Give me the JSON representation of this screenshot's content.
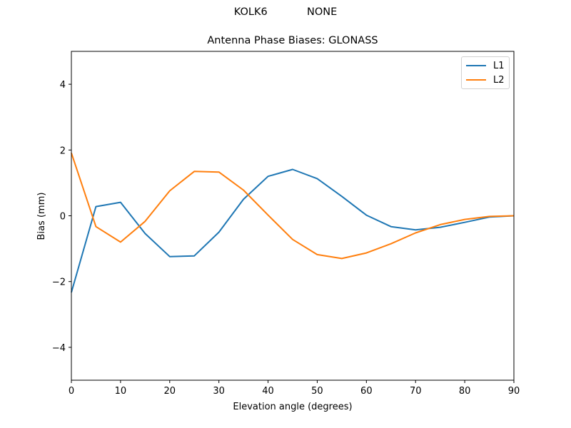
{
  "header": {
    "suptitle": "KOLK6            NONE",
    "title": "Antenna Phase Biases: GLONASS"
  },
  "axes": {
    "xlabel": "Elevation angle (degrees)",
    "ylabel": "Bias (mm)",
    "xticks": [
      "0",
      "10",
      "20",
      "30",
      "40",
      "50",
      "60",
      "70",
      "80",
      "90"
    ],
    "yticks": [
      "4",
      "2",
      "0",
      "−2",
      "−4"
    ]
  },
  "legend": {
    "items": [
      {
        "label": "L1",
        "color": "#1f77b4"
      },
      {
        "label": "L2",
        "color": "#ff7f0e"
      }
    ]
  },
  "chart_data": {
    "type": "line",
    "title": "Antenna Phase Biases: GLONASS",
    "suptitle": "KOLK6            NONE",
    "xlabel": "Elevation angle (degrees)",
    "ylabel": "Bias (mm)",
    "xlim": [
      0,
      90
    ],
    "ylim": [
      -5,
      5
    ],
    "grid": false,
    "legend_position": "upper right",
    "x": [
      0,
      5,
      10,
      15,
      20,
      25,
      30,
      35,
      40,
      45,
      50,
      55,
      60,
      65,
      70,
      75,
      80,
      85,
      90
    ],
    "series": [
      {
        "name": "L1",
        "color": "#1f77b4",
        "values": [
          -2.33,
          0.28,
          0.41,
          -0.54,
          -1.24,
          -1.22,
          -0.5,
          0.5,
          1.2,
          1.41,
          1.13,
          0.59,
          0.02,
          -0.33,
          -0.43,
          -0.35,
          -0.2,
          -0.04,
          0.0
        ]
      },
      {
        "name": "L2",
        "color": "#ff7f0e",
        "values": [
          1.91,
          -0.33,
          -0.8,
          -0.17,
          0.76,
          1.35,
          1.33,
          0.78,
          0.02,
          -0.72,
          -1.18,
          -1.3,
          -1.13,
          -0.85,
          -0.52,
          -0.27,
          -0.11,
          -0.02,
          0.0
        ]
      }
    ]
  }
}
